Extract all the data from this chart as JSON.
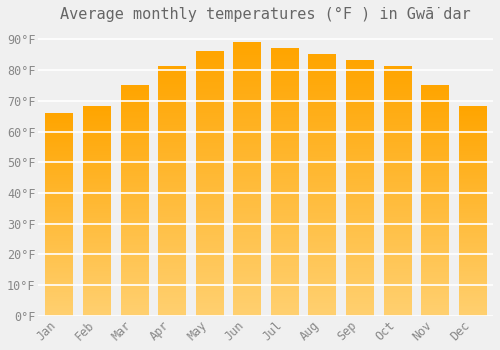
{
  "title": "Average monthly temperatures (°F ) in Gwā̇dar",
  "months": [
    "Jan",
    "Feb",
    "Mar",
    "Apr",
    "May",
    "Jun",
    "Jul",
    "Aug",
    "Sep",
    "Oct",
    "Nov",
    "Dec"
  ],
  "values": [
    66,
    68,
    75,
    81,
    86,
    89,
    87,
    85,
    83,
    81,
    75,
    68
  ],
  "bar_color": "#FFA500",
  "bar_color_light": "#FFD070",
  "background_color": "#f0f0f0",
  "plot_bg_color": "#f0f0f0",
  "grid_color": "#ffffff",
  "yticks": [
    0,
    10,
    20,
    30,
    40,
    50,
    60,
    70,
    80,
    90
  ],
  "ytick_labels": [
    "0°F",
    "10°F",
    "20°F",
    "30°F",
    "40°F",
    "50°F",
    "60°F",
    "70°F",
    "80°F",
    "90°F"
  ],
  "ylim": [
    0,
    93
  ],
  "title_fontsize": 11,
  "tick_fontsize": 8.5,
  "font_color": "#888888",
  "title_color": "#666666"
}
